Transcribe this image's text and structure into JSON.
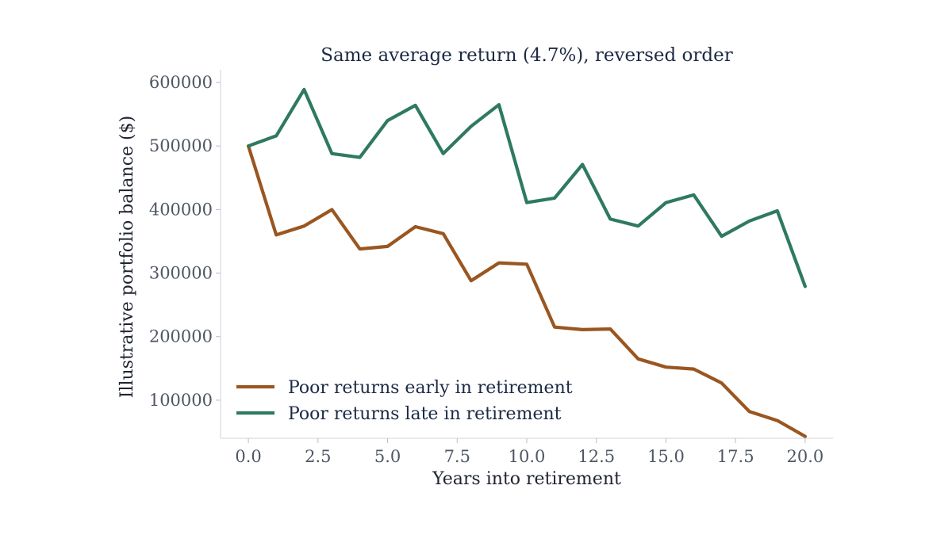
{
  "chart_data": {
    "type": "line",
    "title": "Same average return (4.7%), reversed order",
    "xlabel": "Years into retirement",
    "ylabel": "Illustrative portfolio balance ($)",
    "xlim": [
      -1,
      21
    ],
    "ylim": [
      40000,
      620000
    ],
    "xticks": [
      "0.0",
      "2.5",
      "5.0",
      "7.5",
      "10.0",
      "12.5",
      "15.0",
      "17.5",
      "20.0"
    ],
    "yticks": [
      "100000",
      "200000",
      "300000",
      "400000",
      "500000",
      "600000"
    ],
    "legend_position": "lower-left",
    "grid": false,
    "x": [
      0,
      1,
      2,
      3,
      4,
      5,
      6,
      7,
      8,
      9,
      10,
      11,
      12,
      13,
      14,
      15,
      16,
      17,
      18,
      19,
      20
    ],
    "series": [
      {
        "name": "Poor returns early in retirement",
        "color": "#9a5620",
        "values": [
          500000,
          360000,
          374000,
          400000,
          338000,
          342000,
          373000,
          362000,
          288000,
          316000,
          314000,
          215000,
          211000,
          212000,
          165000,
          152000,
          149000,
          127000,
          82000,
          68000,
          43000
        ]
      },
      {
        "name": "Poor returns late in retirement",
        "color": "#2f7a5e",
        "values": [
          500000,
          516000,
          589000,
          488000,
          482000,
          540000,
          564000,
          488000,
          531000,
          565000,
          411000,
          418000,
          471000,
          385000,
          374000,
          411000,
          423000,
          358000,
          382000,
          398000,
          279000
        ]
      }
    ]
  }
}
